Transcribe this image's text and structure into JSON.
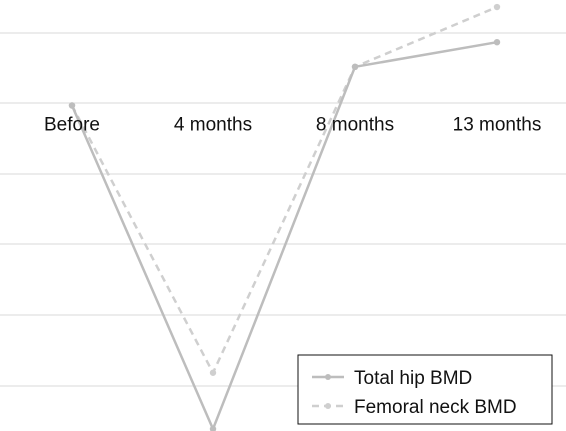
{
  "chart_data": {
    "type": "line",
    "categories": [
      "Before",
      "4 months",
      "8 months",
      "13 months"
    ],
    "series": [
      {
        "name": "Total hip BMD",
        "values": [
          0,
          -4.6,
          0.55,
          0.9
        ],
        "color": "#bdbdbd",
        "dash": "solid"
      },
      {
        "name": "Femoral neck BMD",
        "values": [
          0,
          -3.8,
          0.55,
          1.4
        ],
        "color": "#cfcfcf",
        "dash": "dashed"
      }
    ],
    "ylim": [
      -4.6,
      1.5
    ],
    "grid": true,
    "legend_position": "bottom-right",
    "x_axis_position": "at zero"
  }
}
